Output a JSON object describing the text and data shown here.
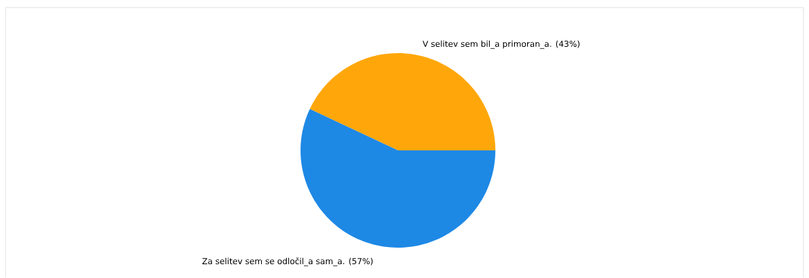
{
  "chart_data": {
    "type": "pie",
    "categories": [
      "V selitev sem bil_a primoran_a.",
      "Za selitev sem se odločil_a sam_a."
    ],
    "values": [
      43,
      57
    ],
    "colors": [
      "#ffa70a",
      "#1e88e5"
    ],
    "value_labels": [
      "(43%)",
      "(57%)"
    ]
  }
}
